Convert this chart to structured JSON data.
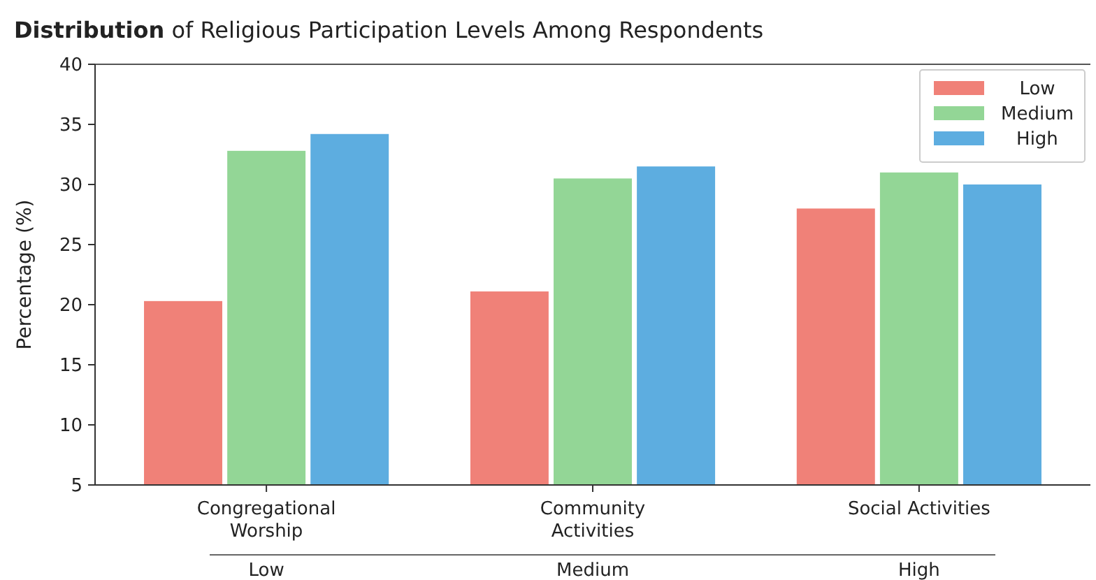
{
  "chart_data": {
    "type": "bar",
    "title": "Distribution of Religious Participation Levels Among Respondents",
    "ylabel": "Percentage (%)",
    "categories": [
      "Congregational Worship",
      "Community Activities",
      "Social Activities"
    ],
    "series": [
      {
        "name": "Low",
        "color": "#f08178",
        "values": [
          20.3,
          21.1,
          28
        ]
      },
      {
        "name": "Medium",
        "color": "#93d696",
        "values": [
          32.8,
          30.5,
          31
        ]
      },
      {
        "name": "High",
        "color": "#5dade0",
        "values": [
          34.2,
          31.5,
          30
        ]
      }
    ],
    "ylim": [
      5,
      40
    ],
    "yticks": [
      5,
      10,
      15,
      20,
      25,
      30,
      35,
      40
    ],
    "grid": false,
    "legend": "top right",
    "annotations": [
      "Low",
      "Medium",
      "High"
    ]
  }
}
